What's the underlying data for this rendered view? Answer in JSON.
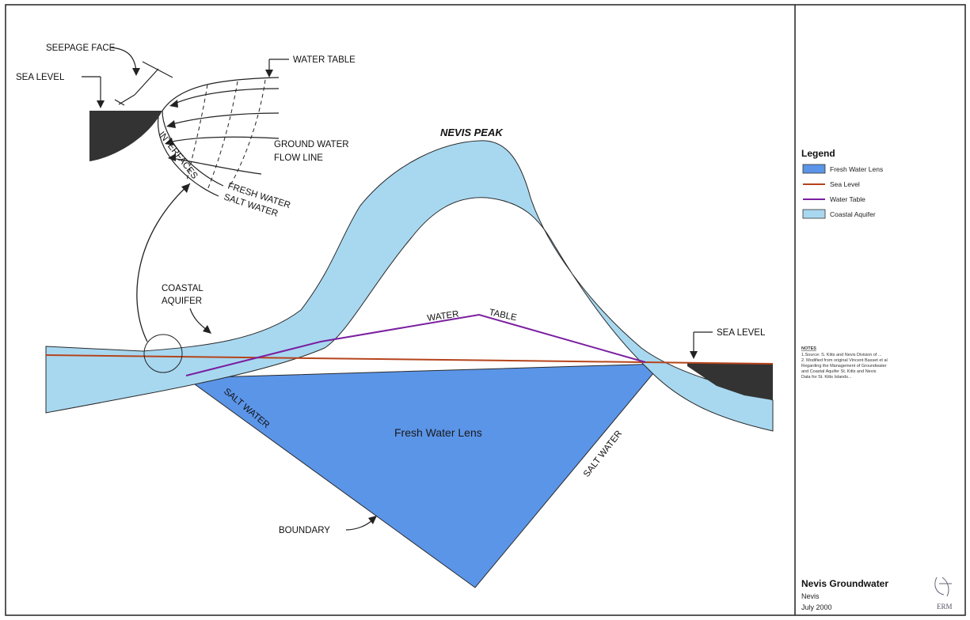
{
  "labels": {
    "seepage_face": "SEEPAGE FACE",
    "sea_level_inset": "SEA LEVEL",
    "water_table_inset": "WATER TABLE",
    "ground_water_flow_line_1": "GROUND WATER",
    "ground_water_flow_line_2": "FLOW LINE",
    "interfaces": "INTERFACES",
    "fresh_water": "FRESH WATER",
    "salt_water_inset": "SALT WATER",
    "nevis_peak": "NEVIS PEAK",
    "coastal_aquifer_1": "COASTAL",
    "coastal_aquifer_2": "AQUIFER",
    "water_table_word1": "WATER",
    "water_table_word2": "TABLE",
    "sea_level_right": "SEA LEVEL",
    "salt_water_left": "SALT WATER",
    "salt_water_right": "SALT WATER",
    "fresh_water_lens": "Fresh Water Lens",
    "boundary": "BOUNDARY"
  },
  "legend": {
    "title": "Legend",
    "items": [
      {
        "label": "Fresh Water Lens",
        "color": "#5b95e8",
        "kind": "box"
      },
      {
        "label": "Sea Level",
        "color": "#b5441c",
        "kind": "line"
      },
      {
        "label": "Water Table",
        "color": "#7a1fa0",
        "kind": "line"
      },
      {
        "label": "Coastal Aquifer",
        "color": "#a8d8f0",
        "kind": "box"
      }
    ]
  },
  "notes": {
    "title": "NOTES",
    "lines": [
      "1.Source: S. Kitts and Nevis Division of ...",
      "2. Modified from original Vincent Basset et al",
      "Regarding the Management of Groundwater",
      "and Coastal Aquifer St. Kitts and Nevis",
      "Data for St. Kitts Islands..."
    ]
  },
  "title_block": {
    "title": "Nevis Groundwater",
    "subtitle": "Nevis",
    "date": "July 2000",
    "logo_text": "ERM"
  },
  "colors": {
    "fresh_lens": "#5b95e8",
    "coastal_aquifer": "#a8d8f0",
    "sea_level": "#b5441c",
    "water_table": "#7a1fa0",
    "sea": "#333333",
    "outline": "#2a2a2a"
  }
}
